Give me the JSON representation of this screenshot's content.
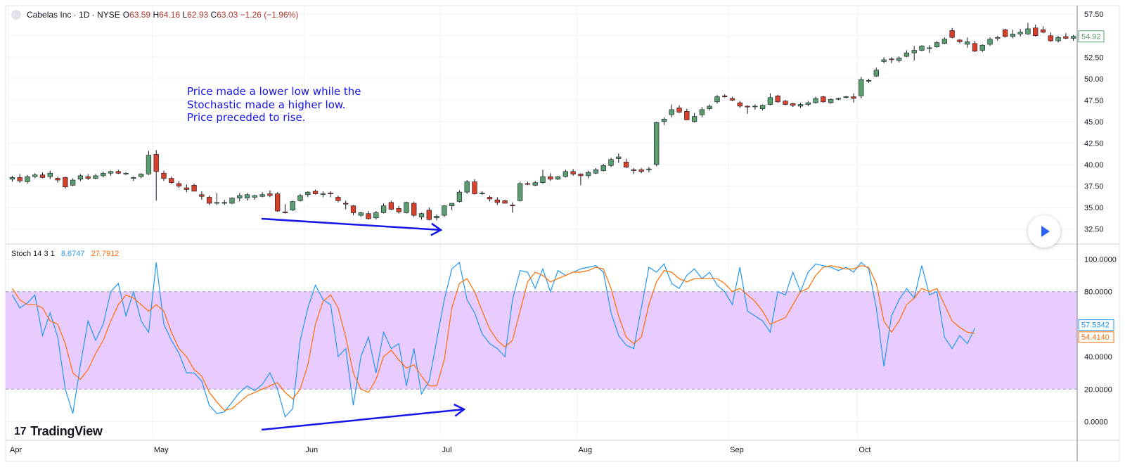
{
  "header": {
    "symbol": "Cabelas Inc · 1D · NYSE",
    "o_label": "O",
    "o": "63.59",
    "h_label": "H",
    "h": "64.16",
    "l_label": "L",
    "l": "62.93",
    "c_label": "C",
    "c": "63.03",
    "change": "−1.26 (−1.96%)"
  },
  "annotation": {
    "lines": [
      "Price made a lower low while the",
      "Stochastic made a higher low.",
      "Price preceded to rise."
    ]
  },
  "stoch_header": {
    "name": "Stoch 14 3 1",
    "k": "8.6747",
    "d": "27.7912"
  },
  "brand": {
    "name": "TradingView",
    "mark": "17"
  },
  "colors": {
    "up": "#5a9e6f",
    "down": "#d9402b",
    "k_line": "#2196f3",
    "d_line": "#ff6d00",
    "band": "#e8ccff",
    "arrow": "#1515e8"
  },
  "icons": {
    "play": "play-icon"
  },
  "chart_data": [
    {
      "type": "candlestick",
      "title": "Cabelas Inc · 1D · NYSE",
      "y_ticks": [
        "57.50",
        "55.00",
        "52.50",
        "50.00",
        "47.50",
        "45.00",
        "42.50",
        "40.00",
        "37.50",
        "35.00",
        "32.50"
      ],
      "ylim": [
        31.0,
        58.5
      ],
      "last_price_label": "54.92",
      "x_month_labels": [
        {
          "label": "Apr",
          "day": 0
        },
        {
          "label": "May",
          "day": 19
        },
        {
          "label": "Jun",
          "day": 39
        },
        {
          "label": "Jul",
          "day": 57
        },
        {
          "label": "Aug",
          "day": 75
        },
        {
          "label": "Sep",
          "day": 95
        },
        {
          "label": "Oct",
          "day": 112
        }
      ],
      "candles": [
        [
          38.3,
          38.7,
          38.0,
          38.5
        ],
        [
          38.5,
          38.9,
          37.9,
          38.1
        ],
        [
          38.0,
          38.8,
          37.8,
          38.6
        ],
        [
          38.6,
          39.0,
          38.4,
          38.8
        ],
        [
          38.8,
          39.1,
          38.4,
          38.5
        ],
        [
          38.6,
          39.3,
          38.3,
          39.0
        ],
        [
          38.4,
          38.6,
          37.9,
          38.2
        ],
        [
          38.5,
          38.6,
          37.2,
          37.4
        ],
        [
          37.6,
          38.4,
          37.5,
          38.2
        ],
        [
          38.3,
          38.9,
          38.1,
          38.7
        ],
        [
          38.6,
          38.9,
          38.2,
          38.4
        ],
        [
          38.4,
          38.9,
          38.3,
          38.7
        ],
        [
          38.7,
          39.2,
          38.5,
          39.0
        ],
        [
          39.0,
          39.3,
          38.7,
          39.2
        ],
        [
          39.2,
          39.4,
          38.9,
          39.0
        ],
        [
          38.9,
          39.1,
          38.8,
          39.0
        ],
        [
          38.4,
          38.6,
          38.1,
          38.5
        ],
        [
          38.6,
          39.0,
          38.4,
          38.9
        ],
        [
          38.9,
          41.6,
          38.8,
          41.1
        ],
        [
          41.2,
          41.7,
          35.8,
          39.2
        ],
        [
          39.0,
          39.3,
          38.1,
          38.4
        ],
        [
          38.4,
          38.6,
          37.8,
          37.9
        ],
        [
          37.8,
          38.1,
          37.3,
          37.5
        ],
        [
          37.3,
          37.7,
          36.8,
          37.1
        ],
        [
          37.6,
          37.8,
          36.9,
          36.9
        ],
        [
          36.5,
          36.9,
          35.9,
          36.3
        ],
        [
          36.2,
          36.4,
          35.3,
          35.5
        ],
        [
          35.5,
          36.7,
          35.3,
          35.6
        ],
        [
          35.5,
          35.9,
          35.3,
          35.6
        ],
        [
          35.5,
          36.2,
          35.4,
          36.1
        ],
        [
          36.1,
          36.7,
          35.7,
          36.4
        ],
        [
          36.1,
          36.7,
          35.8,
          36.5
        ],
        [
          36.2,
          36.5,
          35.9,
          36.4
        ],
        [
          36.3,
          36.8,
          36.2,
          36.5
        ],
        [
          36.6,
          37.0,
          36.2,
          36.4
        ],
        [
          36.6,
          36.8,
          34.5,
          34.6
        ],
        [
          34.5,
          35.4,
          34.3,
          34.4
        ],
        [
          34.7,
          35.8,
          34.6,
          35.7
        ],
        [
          35.8,
          36.6,
          35.7,
          36.4
        ],
        [
          36.5,
          36.9,
          36.2,
          36.8
        ],
        [
          36.9,
          37.1,
          36.5,
          36.6
        ],
        [
          36.6,
          36.9,
          36.2,
          36.6
        ],
        [
          36.7,
          36.9,
          36.2,
          36.6
        ],
        [
          36.2,
          36.4,
          35.6,
          35.8
        ],
        [
          35.5,
          35.8,
          34.8,
          35.4
        ],
        [
          35.2,
          35.3,
          34.1,
          34.4
        ],
        [
          34.1,
          34.5,
          33.9,
          34.4
        ],
        [
          34.3,
          34.6,
          33.6,
          33.7
        ],
        [
          33.8,
          34.6,
          33.6,
          34.4
        ],
        [
          34.4,
          35.5,
          34.3,
          35.2
        ],
        [
          35.6,
          35.8,
          34.7,
          34.8
        ],
        [
          34.9,
          35.2,
          34.3,
          34.5
        ],
        [
          34.4,
          35.7,
          34.3,
          35.6
        ],
        [
          35.5,
          35.7,
          33.9,
          34.1
        ],
        [
          33.9,
          34.4,
          33.6,
          34.3
        ],
        [
          34.7,
          35.0,
          33.5,
          33.6
        ],
        [
          33.8,
          34.2,
          33.5,
          34.0
        ],
        [
          34.1,
          35.3,
          33.9,
          35.2
        ],
        [
          35.2,
          35.5,
          34.7,
          35.5
        ],
        [
          35.7,
          37.0,
          35.6,
          36.8
        ],
        [
          36.8,
          38.2,
          36.6,
          38.0
        ],
        [
          38.0,
          38.3,
          36.5,
          36.6
        ],
        [
          36.6,
          36.9,
          36.5,
          36.7
        ],
        [
          36.2,
          36.4,
          35.7,
          36.0
        ],
        [
          35.9,
          36.2,
          35.3,
          35.6
        ],
        [
          35.8,
          35.9,
          35.5,
          35.5
        ],
        [
          35.3,
          35.6,
          34.4,
          35.2
        ],
        [
          35.8,
          38.0,
          35.7,
          37.8
        ],
        [
          37.8,
          38.0,
          37.6,
          37.7
        ],
        [
          37.6,
          38.1,
          37.5,
          37.9
        ],
        [
          37.9,
          39.4,
          37.8,
          38.6
        ],
        [
          38.6,
          39.0,
          38.1,
          38.3
        ],
        [
          38.3,
          38.7,
          38.2,
          38.6
        ],
        [
          38.6,
          39.4,
          38.5,
          39.2
        ],
        [
          39.2,
          39.5,
          38.7,
          38.9
        ],
        [
          38.9,
          39.0,
          37.6,
          38.7
        ],
        [
          38.7,
          39.3,
          38.4,
          39.1
        ],
        [
          39.0,
          39.6,
          38.9,
          39.4
        ],
        [
          39.3,
          40.1,
          39.2,
          39.9
        ],
        [
          39.9,
          40.8,
          39.7,
          40.6
        ],
        [
          40.7,
          41.3,
          40.2,
          40.9
        ],
        [
          40.3,
          40.7,
          39.6,
          39.7
        ],
        [
          39.4,
          39.6,
          38.9,
          39.3
        ],
        [
          39.4,
          39.6,
          39.0,
          39.2
        ],
        [
          39.4,
          39.7,
          39.1,
          39.5
        ],
        [
          40.0,
          45.0,
          39.8,
          44.9
        ],
        [
          45.0,
          45.5,
          44.6,
          45.3
        ],
        [
          45.8,
          47.0,
          45.5,
          46.4
        ],
        [
          46.6,
          46.9,
          46.0,
          46.1
        ],
        [
          46.2,
          46.5,
          45.2,
          45.2
        ],
        [
          45.0,
          46.0,
          44.9,
          45.6
        ],
        [
          45.8,
          46.7,
          45.5,
          46.4
        ],
        [
          46.5,
          47.0,
          46.3,
          46.8
        ],
        [
          47.3,
          48.1,
          47.1,
          47.9
        ],
        [
          48.0,
          48.2,
          47.8,
          47.9
        ],
        [
          47.7,
          47.9,
          47.4,
          47.5
        ],
        [
          47.2,
          47.4,
          46.6,
          46.8
        ],
        [
          46.8,
          46.9,
          45.9,
          46.7
        ],
        [
          46.8,
          47.0,
          46.4,
          46.8
        ],
        [
          46.5,
          47.0,
          46.3,
          46.9
        ],
        [
          47.0,
          48.3,
          46.9,
          47.8
        ],
        [
          48.0,
          48.1,
          47.2,
          47.3
        ],
        [
          47.4,
          47.5,
          46.9,
          47.0
        ],
        [
          47.1,
          47.2,
          46.7,
          46.9
        ],
        [
          46.8,
          47.2,
          46.6,
          47.0
        ],
        [
          47.0,
          47.4,
          46.8,
          47.2
        ],
        [
          47.2,
          47.9,
          47.1,
          47.7
        ],
        [
          47.9,
          48.0,
          47.2,
          47.3
        ],
        [
          47.2,
          47.7,
          47.1,
          47.6
        ],
        [
          47.6,
          47.8,
          47.5,
          47.7
        ],
        [
          47.8,
          48.0,
          47.7,
          47.9
        ],
        [
          47.9,
          48.3,
          47.2,
          47.7
        ],
        [
          48.0,
          50.2,
          47.7,
          49.9
        ],
        [
          49.7,
          50.0,
          49.5,
          49.8
        ],
        [
          50.3,
          51.3,
          50.2,
          51.0
        ],
        [
          52.0,
          52.5,
          51.8,
          52.2
        ],
        [
          52.3,
          52.5,
          51.8,
          52.2
        ],
        [
          52.1,
          52.6,
          51.9,
          52.4
        ],
        [
          52.6,
          53.3,
          52.5,
          53.0
        ],
        [
          53.0,
          53.8,
          52.1,
          53.3
        ],
        [
          53.3,
          53.9,
          53.2,
          53.8
        ],
        [
          53.5,
          53.9,
          53.0,
          53.6
        ],
        [
          53.7,
          54.4,
          53.6,
          54.2
        ],
        [
          54.1,
          54.8,
          54.0,
          54.6
        ],
        [
          55.6,
          55.9,
          54.7,
          54.8
        ],
        [
          54.5,
          54.6,
          54.1,
          54.3
        ],
        [
          54.0,
          54.8,
          53.6,
          54.3
        ],
        [
          54.1,
          54.4,
          53.1,
          53.2
        ],
        [
          53.3,
          54.0,
          53.1,
          53.9
        ],
        [
          54.0,
          54.8,
          53.8,
          54.6
        ],
        [
          54.7,
          55.0,
          54.4,
          54.8
        ],
        [
          55.7,
          55.8,
          54.8,
          54.9
        ],
        [
          54.9,
          55.7,
          54.7,
          55.2
        ],
        [
          55.2,
          55.8,
          54.9,
          55.4
        ],
        [
          55.2,
          56.5,
          55.1,
          55.8
        ],
        [
          55.9,
          56.3,
          54.9,
          55.0
        ],
        [
          55.7,
          56.1,
          55.3,
          55.4
        ],
        [
          55.0,
          55.4,
          54.3,
          54.4
        ],
        [
          54.4,
          55.0,
          54.2,
          54.8
        ],
        [
          54.9,
          55.3,
          54.6,
          54.7
        ],
        [
          54.7,
          55.1,
          54.4,
          54.92
        ]
      ]
    },
    {
      "type": "line",
      "title": "Stoch 14 3 1",
      "ylim": [
        -8,
        108
      ],
      "y_ticks": [
        "100.0000",
        "80.0000",
        "60.0000",
        "40.0000",
        "20.0000",
        "0.0000"
      ],
      "band": [
        20,
        80
      ],
      "last_labels": {
        "k": "57.5342",
        "d": "54.4140"
      },
      "series": [
        {
          "name": "8.6747",
          "values": [
            78,
            70,
            73,
            78,
            53,
            67,
            52,
            20,
            5,
            35,
            62,
            50,
            60,
            80,
            85,
            65,
            80,
            62,
            55,
            98,
            60,
            50,
            42,
            30,
            30,
            25,
            10,
            5,
            6,
            12,
            18,
            22,
            19,
            23,
            30,
            20,
            3,
            8,
            50,
            70,
            84,
            75,
            72,
            40,
            45,
            10,
            40,
            52,
            30,
            55,
            45,
            48,
            22,
            45,
            17,
            25,
            50,
            75,
            94,
            98,
            75,
            67,
            54,
            48,
            45,
            40,
            75,
            93,
            92,
            82,
            94,
            80,
            93,
            90,
            92,
            94,
            95,
            96,
            92,
            67,
            53,
            47,
            45,
            70,
            95,
            92,
            97,
            85,
            82,
            90,
            94,
            88,
            92,
            84,
            80,
            72,
            95,
            68,
            65,
            62,
            55,
            80,
            78,
            92,
            80,
            92,
            97,
            96,
            95,
            93,
            95,
            92,
            98,
            94,
            70,
            34,
            65,
            75,
            82,
            76,
            96,
            78,
            80,
            52,
            45,
            53,
            48,
            57.5342
          ]
        },
        {
          "name": "27.7912",
          "values": [
            82,
            75,
            72,
            72,
            70,
            62,
            60,
            48,
            30,
            26,
            32,
            42,
            50,
            62,
            72,
            78,
            76,
            72,
            68,
            72,
            68,
            55,
            45,
            40,
            32,
            28,
            18,
            12,
            7,
            8,
            12,
            16,
            18,
            20,
            22,
            24,
            18,
            14,
            20,
            35,
            60,
            74,
            78,
            70,
            52,
            30,
            20,
            18,
            26,
            40,
            44,
            38,
            33,
            35,
            28,
            22,
            22,
            38,
            70,
            85,
            88,
            80,
            68,
            57,
            50,
            46,
            50,
            68,
            86,
            92,
            90,
            86,
            88,
            90,
            92,
            92,
            93,
            95,
            94,
            82,
            65,
            52,
            48,
            52,
            72,
            86,
            93,
            92,
            88,
            86,
            88,
            88,
            88,
            88,
            85,
            80,
            82,
            78,
            74,
            68,
            60,
            62,
            64,
            72,
            80,
            82,
            90,
            95,
            96,
            95,
            94,
            94,
            96,
            95,
            85,
            62,
            55,
            62,
            72,
            76,
            82,
            80,
            82,
            72,
            62,
            58,
            55,
            54.414
          ]
        }
      ]
    }
  ]
}
